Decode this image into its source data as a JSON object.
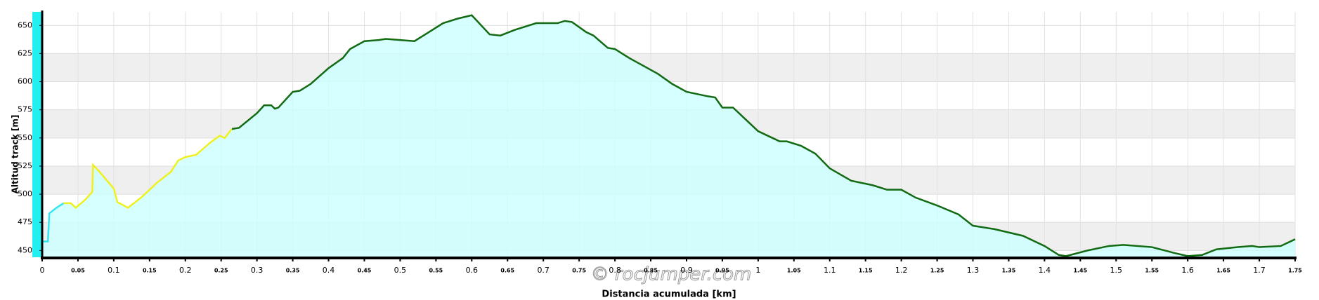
{
  "chart_data": {
    "type": "area-line",
    "ylabel": "Altitud track [m]",
    "xlabel": "Distancia acumulada [km]",
    "watermark": "© rocjumper.com",
    "xlim": [
      0,
      1.75
    ],
    "ylim": [
      444,
      662
    ],
    "xticks": [
      0,
      0.05,
      0.1,
      0.15,
      0.2,
      0.25,
      0.3,
      0.35,
      0.4,
      0.45,
      0.5,
      0.55,
      0.6,
      0.65,
      0.7,
      0.75,
      0.8,
      0.85,
      0.9,
      0.95,
      1,
      1.05,
      1.1,
      1.15,
      1.2,
      1.25,
      1.3,
      1.35,
      1.4,
      1.45,
      1.5,
      1.55,
      1.6,
      1.65,
      1.7,
      1.75
    ],
    "yticks": [
      450,
      475,
      500,
      525,
      550,
      575,
      600,
      625,
      650
    ],
    "grid": true,
    "fill_color": "#ccffff",
    "series": [
      {
        "color": "#33e6f0",
        "x": [
          0,
          0.008,
          0.01,
          0.02,
          0.03
        ],
        "values": [
          458,
          458,
          483,
          488,
          492
        ]
      },
      {
        "color": "#f0f020",
        "x": [
          0.03,
          0.04,
          0.047,
          0.06,
          0.07,
          0.071,
          0.08,
          0.1,
          0.105,
          0.12,
          0.14,
          0.16,
          0.18,
          0.19,
          0.2,
          0.215,
          0.235,
          0.248,
          0.255,
          0.265
        ],
        "values": [
          492,
          492,
          488,
          495,
          502,
          526,
          520,
          505,
          493,
          488,
          498,
          510,
          520,
          530,
          533,
          535,
          546,
          552,
          550,
          558
        ]
      },
      {
        "color": "#126b12",
        "x": [
          0.265,
          0.275,
          0.3,
          0.31,
          0.32,
          0.325,
          0.33,
          0.35,
          0.36,
          0.375,
          0.4,
          0.42,
          0.43,
          0.45,
          0.47,
          0.48,
          0.5,
          0.52,
          0.54,
          0.56,
          0.58,
          0.6,
          0.625,
          0.64,
          0.66,
          0.69,
          0.72,
          0.73,
          0.74,
          0.76,
          0.77,
          0.79,
          0.8,
          0.82,
          0.84,
          0.86,
          0.88,
          0.9,
          0.93,
          0.94,
          0.95,
          0.965,
          0.98,
          1,
          1.02,
          1.03,
          1.04,
          1.06,
          1.08,
          1.1,
          1.13,
          1.16,
          1.18,
          1.2,
          1.22,
          1.25,
          1.28,
          1.3,
          1.33,
          1.37,
          1.4,
          1.42,
          1.43,
          1.46,
          1.49,
          1.51,
          1.55,
          1.58,
          1.6,
          1.62,
          1.64,
          1.67,
          1.69,
          1.7,
          1.73,
          1.75
        ],
        "values": [
          558,
          559,
          572,
          579,
          579,
          576,
          577,
          591,
          592,
          598,
          612,
          621,
          629,
          636,
          637,
          638,
          637,
          636,
          644,
          652,
          656,
          659,
          642,
          641,
          646,
          652,
          652,
          654,
          653,
          644,
          641,
          630,
          629,
          621,
          614,
          607,
          598,
          591,
          587,
          586,
          577,
          577,
          568,
          556,
          550,
          547,
          547,
          543,
          536,
          523,
          512,
          508,
          504,
          504,
          497,
          490,
          482,
          472,
          469,
          463,
          454,
          446,
          445,
          450,
          454,
          455,
          453,
          448,
          445,
          446,
          451,
          453,
          454,
          453,
          454,
          460
        ]
      }
    ]
  }
}
